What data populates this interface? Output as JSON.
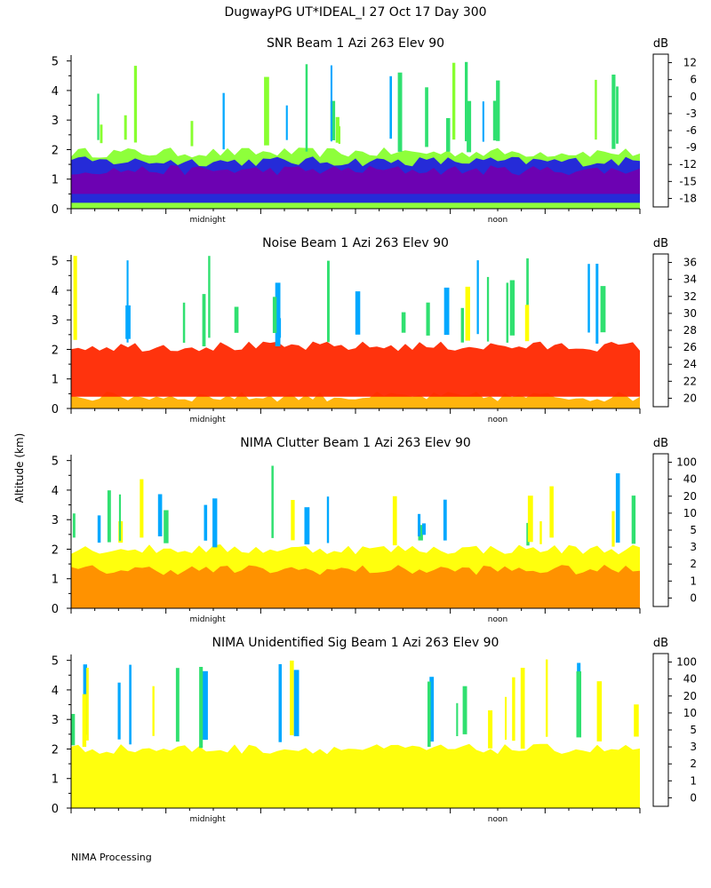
{
  "page_title": "DugwayPG UT*IDEAL_I  27 Oct 17 Day 300",
  "y_axis_label": "Altitude (km)",
  "footer": "NIMA Processing",
  "chart_data": [
    {
      "type": "heatmap",
      "title": "SNR Beam 1 Azi 263 Elev 90",
      "ylabel": "Altitude (km)",
      "ylim": [
        0,
        5.2
      ],
      "yticks": [
        0,
        1,
        2,
        3,
        4,
        5
      ],
      "xticks": [
        "midnight",
        "noon"
      ],
      "colorbar_unit": "dB",
      "colorbar_labels": [
        "12",
        "6",
        "0",
        "-3",
        "-6",
        "-9",
        "-12",
        "-15",
        "-18"
      ],
      "colorbar_colors": [
        "#ffb000",
        "#ff8c00",
        "#ff2800",
        "#500050",
        "#7000b0",
        "#2020e0",
        "#00a8ff",
        "#30e070",
        "#88ff30"
      ],
      "fill_top_km": 1.9,
      "layers": [
        {
          "from_km": 0,
          "to_km": 1.9,
          "color": "#88ff30"
        },
        {
          "from_km": 0.2,
          "to_km": 1.6,
          "color": "#2020e0"
        },
        {
          "from_km": 0.5,
          "to_km": 1.3,
          "color": "#7000b0"
        }
      ]
    },
    {
      "type": "heatmap",
      "title": "Noise Beam 1 Azi 263 Elev 90",
      "ylabel": "Altitude (km)",
      "ylim": [
        0,
        5.2
      ],
      "yticks": [
        0,
        1,
        2,
        3,
        4,
        5
      ],
      "xticks": [
        "midnight",
        "noon"
      ],
      "colorbar_unit": "dB",
      "colorbar_labels": [
        "36",
        "34",
        "32",
        "30",
        "28",
        "26",
        "24",
        "22",
        "20"
      ],
      "colorbar_colors": [
        "#ffb000",
        "#ff8c00",
        "#ff2800",
        "#500050",
        "#7000b0",
        "#2020e0",
        "#00a8ff",
        "#30e070",
        "#ffff00"
      ],
      "fill_top_km": 2.1,
      "layers": [
        {
          "from_km": 0,
          "to_km": 0.4,
          "color": "#ffb000"
        },
        {
          "from_km": 0.4,
          "to_km": 2.1,
          "color": "#ff2800"
        }
      ]
    },
    {
      "type": "heatmap",
      "title": "NIMA Clutter Beam 1 Azi 263 Elev 90",
      "ylabel": "Altitude (km)",
      "ylim": [
        0,
        5.2
      ],
      "yticks": [
        0,
        1,
        2,
        3,
        4,
        5
      ],
      "xticks": [
        "midnight",
        "noon"
      ],
      "colorbar_unit": "dB",
      "colorbar_labels": [
        "100",
        "40",
        "20",
        "10",
        "5",
        "3",
        "2",
        "1",
        "0"
      ],
      "colorbar_colors": [
        "#ffb000",
        "#ff8c00",
        "#ff2800",
        "#500050",
        "#7000b0",
        "#2020e0",
        "#00a8ff",
        "#30e070",
        "#ffff00"
      ],
      "fill_top_km": 2.0,
      "layers": [
        {
          "from_km": 0,
          "to_km": 2.0,
          "color": "#ffff00"
        },
        {
          "from_km": 0,
          "to_km": 1.3,
          "color": "#ff8c00"
        }
      ]
    },
    {
      "type": "heatmap",
      "title": "NIMA Unidentified Sig Beam 1 Azi 263 Elev 90",
      "ylabel": "Altitude (km)",
      "ylim": [
        0,
        5.2
      ],
      "yticks": [
        0,
        1,
        2,
        3,
        4,
        5
      ],
      "xticks": [
        "midnight",
        "noon"
      ],
      "colorbar_unit": "dB",
      "colorbar_labels": [
        "100",
        "40",
        "20",
        "10",
        "5",
        "3",
        "2",
        "1",
        "0"
      ],
      "colorbar_colors": [
        "#ffb000",
        "#ff8c00",
        "#ff2800",
        "#500050",
        "#7000b0",
        "#2020e0",
        "#00a8ff",
        "#30e070",
        "#ffff00"
      ],
      "fill_top_km": 2.0,
      "layers": [
        {
          "from_km": 0,
          "to_km": 2.0,
          "color": "#ffff00"
        }
      ]
    }
  ]
}
